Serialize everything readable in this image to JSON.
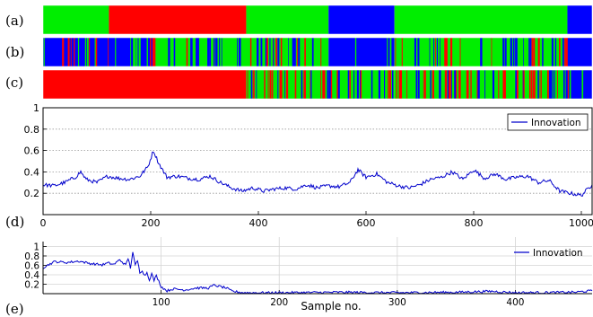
{
  "colors": {
    "green": "#00ee00",
    "red": "#ff0000",
    "blue": "#0000ff",
    "line": "#0000cc",
    "grid": "#999999",
    "grid_e": "#d4d4d4"
  },
  "chart_data": [
    {
      "type": "heatmap",
      "panel": "(a)",
      "description": "state segmentation strip",
      "segments": [
        {
          "start": 0,
          "end": 0.12,
          "state": "green"
        },
        {
          "start": 0.12,
          "end": 0.37,
          "state": "red"
        },
        {
          "start": 0.37,
          "end": 0.52,
          "state": "green"
        },
        {
          "start": 0.52,
          "end": 0.64,
          "state": "blue"
        },
        {
          "start": 0.64,
          "end": 0.955,
          "state": "green"
        },
        {
          "start": 0.955,
          "end": 1.0,
          "state": "blue"
        }
      ]
    },
    {
      "type": "heatmap",
      "panel": "(b)",
      "base_segments": [
        {
          "start": 0,
          "end": 0.2,
          "state": "blue"
        },
        {
          "start": 0.2,
          "end": 0.52,
          "state": "green"
        },
        {
          "start": 0.52,
          "end": 0.64,
          "state": "blue"
        },
        {
          "start": 0.64,
          "end": 0.955,
          "state": "green"
        },
        {
          "start": 0.955,
          "end": 1.0,
          "state": "blue"
        }
      ]
    },
    {
      "type": "heatmap",
      "panel": "(c)",
      "base_segments": [
        {
          "start": 0,
          "end": 0.37,
          "state": "red"
        },
        {
          "start": 0.37,
          "end": 0.64,
          "state": "green"
        },
        {
          "start": 0.64,
          "end": 0.955,
          "state": "green"
        },
        {
          "start": 0.955,
          "end": 1.0,
          "state": "blue"
        }
      ]
    },
    {
      "type": "line",
      "panel": "(d)",
      "series": [
        {
          "name": "Innovation"
        }
      ],
      "xlim": [
        0,
        1020
      ],
      "ylim": [
        0,
        1
      ],
      "xticks": [
        0,
        200,
        400,
        600,
        800,
        1000
      ],
      "yticks": [
        0.2,
        0.4,
        0.6,
        0.8,
        1
      ],
      "ytick_labels": [
        "0.2",
        "0.4",
        "0.6",
        "0.8",
        "1"
      ],
      "x": [
        0,
        20,
        40,
        60,
        70,
        80,
        100,
        120,
        140,
        160,
        180,
        195,
        205,
        215,
        230,
        250,
        270,
        290,
        310,
        330,
        350,
        370,
        390,
        410,
        430,
        450,
        470,
        490,
        510,
        530,
        550,
        570,
        585,
        600,
        620,
        640,
        660,
        680,
        700,
        720,
        740,
        760,
        780,
        800,
        820,
        840,
        860,
        880,
        900,
        920,
        940,
        960,
        980,
        1000,
        1020
      ],
      "y": [
        0.28,
        0.27,
        0.3,
        0.35,
        0.4,
        0.33,
        0.3,
        0.36,
        0.34,
        0.33,
        0.36,
        0.45,
        0.6,
        0.48,
        0.35,
        0.36,
        0.34,
        0.33,
        0.36,
        0.3,
        0.25,
        0.22,
        0.25,
        0.22,
        0.24,
        0.25,
        0.24,
        0.28,
        0.25,
        0.27,
        0.26,
        0.3,
        0.42,
        0.35,
        0.38,
        0.3,
        0.27,
        0.25,
        0.28,
        0.33,
        0.35,
        0.4,
        0.33,
        0.42,
        0.34,
        0.38,
        0.33,
        0.35,
        0.36,
        0.3,
        0.32,
        0.22,
        0.2,
        0.18,
        0.28
      ]
    },
    {
      "type": "line",
      "panel": "(e)",
      "series": [
        {
          "name": "Innovation"
        }
      ],
      "xlim": [
        0,
        465
      ],
      "ylim": [
        0,
        1.2
      ],
      "xticks": [
        100,
        200,
        300,
        400
      ],
      "yticks": [
        0.2,
        0.4,
        0.6,
        0.8,
        1
      ],
      "ytick_labels": [
        "0.2",
        "0.4",
        "0.6",
        "0.8",
        "1"
      ],
      "xlabel": "Sample no.",
      "x": [
        0,
        5,
        10,
        20,
        30,
        40,
        50,
        55,
        60,
        65,
        70,
        72,
        74,
        76,
        78,
        80,
        82,
        84,
        86,
        88,
        90,
        92,
        94,
        96,
        100,
        105,
        110,
        120,
        130,
        140,
        145,
        150,
        155,
        160,
        170,
        180,
        200,
        250,
        300,
        350,
        380,
        400,
        450,
        465
      ],
      "y": [
        0.55,
        0.62,
        0.68,
        0.66,
        0.69,
        0.64,
        0.61,
        0.65,
        0.62,
        0.72,
        0.6,
        0.75,
        0.55,
        0.88,
        0.6,
        0.7,
        0.45,
        0.5,
        0.38,
        0.45,
        0.3,
        0.42,
        0.28,
        0.38,
        0.15,
        0.06,
        0.1,
        0.08,
        0.12,
        0.12,
        0.18,
        0.15,
        0.12,
        0.05,
        0.02,
        0.02,
        0.02,
        0.03,
        0.02,
        0.03,
        0.05,
        0.02,
        0.03,
        0.06
      ]
    }
  ],
  "labels": {
    "a": "(a)",
    "b": "(b)",
    "c": "(c)",
    "d": "(d)",
    "e": "(e)"
  },
  "legend_label": "Innovation",
  "xlabel_e": "Sample no."
}
